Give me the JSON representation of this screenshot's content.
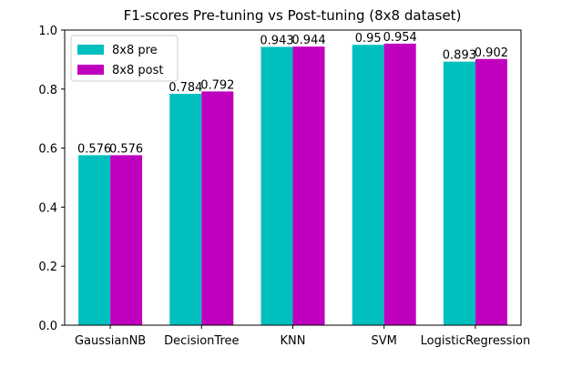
{
  "chart_data": {
    "type": "bar",
    "title": "F1-scores Pre-tuning vs Post-tuning (8x8 dataset)",
    "xlabel": "",
    "ylabel": "",
    "categories": [
      "GaussianNB",
      "DecisionTree",
      "KNN",
      "SVM",
      "LogisticRegression"
    ],
    "series": [
      {
        "name": "8x8 pre",
        "color": "#00bfbf",
        "values": [
          0.576,
          0.784,
          0.943,
          0.95,
          0.893
        ]
      },
      {
        "name": "8x8 post",
        "color": "#bf00bf",
        "values": [
          0.576,
          0.792,
          0.944,
          0.954,
          0.902
        ]
      }
    ],
    "data_labels": [
      [
        "0.576",
        "0.784",
        "0.943",
        "0.95",
        "0.893"
      ],
      [
        "0.576",
        "0.792",
        "0.944",
        "0.954",
        "0.902"
      ]
    ],
    "ylim": [
      0,
      1.0
    ],
    "yticks": [
      "0.0",
      "0.2",
      "0.4",
      "0.6",
      "0.8",
      "1.0"
    ],
    "grid": false,
    "legend_position": "top-left"
  }
}
